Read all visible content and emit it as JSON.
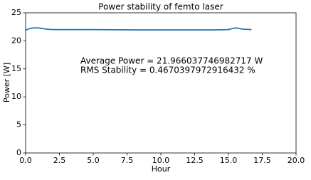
{
  "chart_data": {
    "type": "line",
    "title": "Power stability of femto laser",
    "xlabel": "Hour",
    "ylabel": "Power [W]",
    "annotations": [
      "Average Power = 21.966037746982717 W",
      "RMS Stability = 0.4670397972916432 %"
    ],
    "x": [
      0,
      0.3,
      0.6,
      1,
      1.5,
      2,
      3,
      5,
      8,
      11,
      14,
      15,
      15.3,
      15.6,
      16,
      16.7
    ],
    "series": [
      {
        "name": "Power",
        "color": "#1f77b4",
        "values": [
          21.9,
          22.2,
          22.3,
          22.3,
          22.1,
          22.0,
          22.0,
          22.0,
          21.95,
          21.95,
          21.95,
          22.0,
          22.2,
          22.3,
          22.1,
          22.0
        ]
      }
    ],
    "xlim": [
      0,
      20
    ],
    "xticks": [
      {
        "value": 0,
        "label": "0.0"
      },
      2.5,
      {
        "value": 5,
        "label": "5.0"
      },
      7.5,
      {
        "value": 10,
        "label": "10.0"
      },
      12.5,
      {
        "value": 15,
        "label": "15.0"
      },
      17.5,
      {
        "value": 20,
        "label": "20.0"
      }
    ],
    "ylim": [
      0,
      25
    ],
    "yticks": [
      0,
      5,
      10,
      15,
      20,
      25
    ]
  }
}
